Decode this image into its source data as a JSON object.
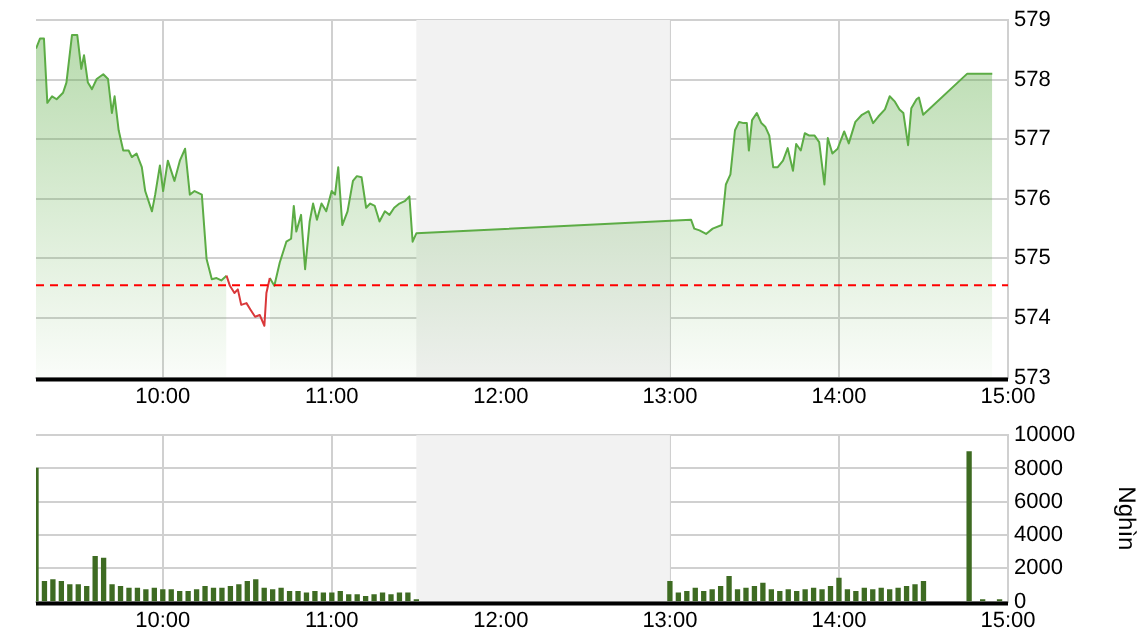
{
  "chart_data": [
    {
      "type": "area",
      "xlim": [
        9.25,
        15
      ],
      "xticks": [
        {
          "value": 10,
          "label": "10:00"
        },
        {
          "value": 11,
          "label": "11:00"
        },
        {
          "value": 12,
          "label": "12:00"
        },
        {
          "value": 13,
          "label": "13:00"
        },
        {
          "value": 14,
          "label": "14:00"
        },
        {
          "value": 15,
          "label": "15:00"
        }
      ],
      "ylim": [
        573,
        579
      ],
      "yticks": [
        573,
        574,
        575,
        576,
        577,
        578,
        579
      ],
      "grid": true,
      "legend": false,
      "marker": "none",
      "ref_lines": [
        {
          "axis": "y",
          "value": 574.55,
          "color": "#ff0000",
          "line_style": "dashed"
        }
      ],
      "bands": [
        {
          "axis": "x",
          "from": 11.5,
          "to": 13,
          "color": "#f2f2f2"
        }
      ],
      "series": [
        {
          "color": "#5cac45",
          "x": [
            9.25,
            9.274,
            9.297,
            9.317,
            9.345,
            9.372,
            9.41,
            9.43,
            9.463,
            9.494,
            9.518,
            9.534,
            9.557,
            9.581,
            9.609,
            9.648,
            9.676,
            9.699,
            9.715,
            9.739,
            9.766,
            9.798,
            9.817,
            9.845,
            9.876,
            9.896,
            9.936,
            9.955,
            9.983,
            10.002,
            10.03,
            10.069,
            10.101,
            10.132,
            10.16,
            10.188,
            10.231,
            10.259,
            10.29,
            10.318,
            10.346,
            10.377,
            10.5,
            10.633,
            10.66,
            10.692,
            10.731,
            10.759,
            10.775,
            10.79,
            10.818,
            10.842,
            10.869,
            10.889,
            10.912,
            10.939,
            10.967,
            10.999,
            11.019,
            11.038,
            11.062,
            11.093,
            11.125,
            11.148,
            11.176,
            11.203,
            11.227,
            11.254,
            11.282,
            11.314,
            11.341,
            11.369,
            11.4,
            11.431,
            11.459,
            11.478,
            11.5,
            13.125,
            13.144,
            13.175,
            13.214,
            13.253,
            13.307,
            13.331,
            13.358,
            13.385,
            13.409,
            13.436,
            13.455,
            13.467,
            13.486,
            13.514,
            13.541,
            13.564,
            13.588,
            13.611,
            13.638,
            13.669,
            13.697,
            13.728,
            13.747,
            13.774,
            13.798,
            13.825,
            13.856,
            13.883,
            13.914,
            13.934,
            13.961,
            13.992,
            14.031,
            14.058,
            14.097,
            14.136,
            14.175,
            14.202,
            14.233,
            14.272,
            14.3,
            14.331,
            14.358,
            14.381,
            14.409,
            14.428,
            14.459,
            14.473,
            14.498,
            14.759,
            14.907
          ],
          "values": [
            578.52,
            578.69,
            578.69,
            577.61,
            577.72,
            577.67,
            577.78,
            577.95,
            578.75,
            578.75,
            578.18,
            578.41,
            577.95,
            577.84,
            578.01,
            578.09,
            578.01,
            577.44,
            577.72,
            577.15,
            576.81,
            576.81,
            576.7,
            576.76,
            576.53,
            576.13,
            575.79,
            576.07,
            576.56,
            576.13,
            576.64,
            576.3,
            576.64,
            576.84,
            576.07,
            576.13,
            576.07,
            574.99,
            574.65,
            574.67,
            574.63,
            574.71,
            null,
            574.67,
            574.54,
            574.93,
            575.28,
            575.33,
            575.88,
            575.45,
            575.73,
            574.82,
            575.62,
            575.92,
            575.65,
            575.92,
            575.79,
            576.13,
            576.07,
            576.53,
            575.56,
            575.79,
            576.3,
            576.38,
            576.36,
            575.85,
            575.92,
            575.88,
            575.62,
            575.79,
            575.73,
            575.85,
            575.92,
            575.96,
            576.04,
            575.28,
            575.42,
            575.65,
            575.5,
            575.47,
            575.41,
            575.5,
            575.56,
            576.24,
            576.41,
            577.15,
            577.29,
            577.27,
            577.27,
            576.81,
            577.32,
            577.44,
            577.27,
            577.21,
            577.06,
            576.53,
            576.53,
            576.64,
            576.85,
            576.47,
            576.92,
            576.81,
            577.1,
            577.06,
            577.06,
            576.95,
            576.24,
            577.02,
            576.76,
            576.84,
            577.13,
            576.93,
            577.29,
            577.41,
            577.47,
            577.27,
            577.38,
            577.5,
            577.72,
            577.63,
            577.5,
            577.44,
            576.9,
            577.52,
            577.67,
            577.7,
            577.41,
            578.1,
            578.1
          ]
        },
        {
          "type": "line",
          "color": "#d9383a",
          "x": [
            10.377,
            10.397,
            10.424,
            10.444,
            10.464,
            10.495,
            10.519,
            10.546,
            10.574,
            10.601,
            10.613,
            10.633
          ],
          "values": [
            574.71,
            574.54,
            574.42,
            574.48,
            574.22,
            574.25,
            574.14,
            574.02,
            574.05,
            573.87,
            574.42,
            574.67
          ]
        }
      ]
    },
    {
      "type": "bar",
      "ylabel": "Nghìn",
      "xlim": [
        9.25,
        15
      ],
      "xticks": [
        {
          "value": 10,
          "label": "10:00"
        },
        {
          "value": 11,
          "label": "11:00"
        },
        {
          "value": 12,
          "label": "12:00"
        },
        {
          "value": 13,
          "label": "13:00"
        },
        {
          "value": 14,
          "label": "14:00"
        },
        {
          "value": 15,
          "label": "15:00"
        }
      ],
      "ylim": [
        0,
        10000
      ],
      "yticks": [
        0,
        2000,
        4000,
        6000,
        8000,
        10000
      ],
      "grid": true,
      "legend": false,
      "bands": [
        {
          "axis": "x",
          "from": 11.5,
          "to": 13,
          "color": "#f2f2f2"
        }
      ],
      "series": [
        {
          "color": "#3e6b22",
          "x": [
            9.25,
            9.3,
            9.35,
            9.4,
            9.45,
            9.5,
            9.55,
            9.6,
            9.65,
            9.7,
            9.75,
            9.8,
            9.85,
            9.9,
            9.95,
            10.0,
            10.05,
            10.1,
            10.15,
            10.2,
            10.25,
            10.3,
            10.35,
            10.4,
            10.45,
            10.5,
            10.55,
            10.6,
            10.65,
            10.7,
            10.75,
            10.8,
            10.85,
            10.9,
            10.95,
            11.0,
            11.05,
            11.1,
            11.15,
            11.2,
            11.25,
            11.3,
            11.35,
            11.4,
            11.45,
            11.5,
            13.0,
            13.05,
            13.1,
            13.15,
            13.2,
            13.25,
            13.3,
            13.35,
            13.4,
            13.45,
            13.5,
            13.55,
            13.6,
            13.65,
            13.7,
            13.75,
            13.8,
            13.85,
            13.9,
            13.95,
            14.0,
            14.05,
            14.1,
            14.15,
            14.2,
            14.25,
            14.3,
            14.35,
            14.4,
            14.45,
            14.5,
            14.77,
            14.85,
            14.95
          ],
          "values": [
            8000,
            1200,
            1300,
            1200,
            1000,
            1000,
            900,
            2700,
            2600,
            1000,
            900,
            800,
            800,
            700,
            800,
            700,
            700,
            600,
            600,
            700,
            900,
            800,
            800,
            900,
            1000,
            1200,
            1300,
            800,
            700,
            800,
            600,
            600,
            500,
            600,
            500,
            500,
            600,
            400,
            400,
            300,
            400,
            500,
            400,
            500,
            500,
            100,
            1200,
            500,
            600,
            800,
            600,
            700,
            900,
            1500,
            700,
            800,
            900,
            1100,
            700,
            600,
            700,
            600,
            700,
            800,
            700,
            900,
            1400,
            700,
            600,
            800,
            700,
            800,
            700,
            800,
            900,
            1000,
            1200,
            9000,
            100,
            100
          ]
        }
      ]
    }
  ]
}
